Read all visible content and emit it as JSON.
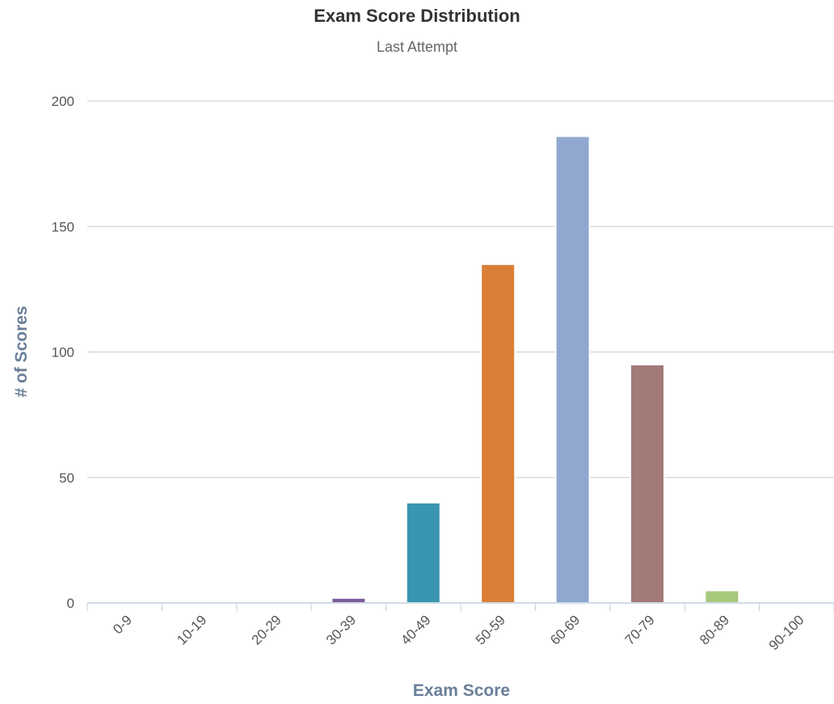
{
  "chart_data": {
    "type": "bar",
    "title": "Exam Score Distribution",
    "subtitle": "Last Attempt",
    "xlabel": "Exam Score",
    "ylabel": "# of Scores",
    "categories": [
      "0-9",
      "10-19",
      "20-29",
      "30-39",
      "40-49",
      "50-59",
      "60-69",
      "70-79",
      "80-89",
      "90-100"
    ],
    "values": [
      0,
      0,
      0,
      2,
      40,
      135,
      186,
      95,
      5,
      0
    ],
    "colors": [
      "#2f7ed8",
      "#0d233a",
      "#8bbc21",
      "#7b5a9a",
      "#3a96b0",
      "#d97f37",
      "#90a8cf",
      "#a27a78",
      "#a8c87c",
      "#92a8cd"
    ],
    "ylim": [
      0,
      200
    ],
    "yticks": [
      0,
      50,
      100,
      150,
      200
    ],
    "grid": true,
    "legend": "none"
  }
}
